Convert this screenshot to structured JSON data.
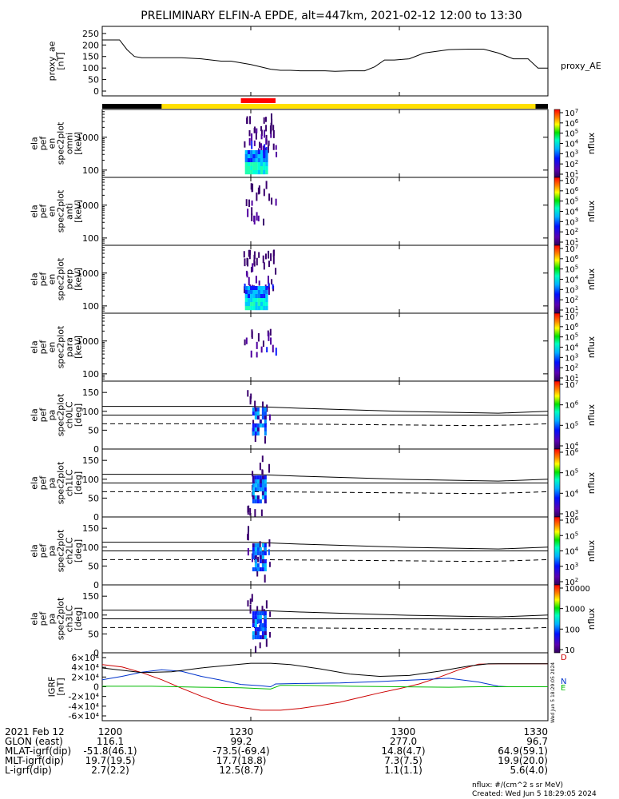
{
  "title": "PRELIMINARY ELFIN-A EPDE, alt=447km, 2021-02-12 12:00 to 13:30",
  "x_axis": {
    "tick_labels": [
      "1200",
      "1230",
      "1300",
      "1330"
    ],
    "tick_minutes": [
      0,
      30,
      60,
      90
    ],
    "range_minutes": [
      0,
      90
    ]
  },
  "chart_data": [
    {
      "type": "line",
      "panel": "proxy_ae",
      "ylabel": [
        "proxy_ae",
        "[nT]"
      ],
      "ylim": [
        0,
        260
      ],
      "yticks": [
        0,
        50,
        100,
        150,
        200,
        250
      ],
      "series": [
        {
          "name": "proxy_AE",
          "x": [
            0,
            3.5,
            5,
            6.5,
            8,
            13,
            16,
            20,
            24,
            26,
            30,
            34,
            36,
            38,
            40,
            42,
            45,
            47,
            50,
            53,
            55,
            57,
            59,
            62,
            65,
            70,
            74,
            77,
            80,
            83,
            86,
            88,
            90
          ],
          "y": [
            222,
            222,
            180,
            150,
            145,
            145,
            145,
            140,
            130,
            130,
            115,
            95,
            90,
            90,
            88,
            88,
            88,
            86,
            88,
            88,
            105,
            135,
            135,
            140,
            165,
            180,
            182,
            182,
            165,
            140,
            140,
            100,
            100
          ],
          "color": "#000000"
        }
      ]
    },
    {
      "type": "heatmap",
      "panel": "spec2plot-en-omni",
      "ylabel": [
        "ela",
        "pef",
        "en",
        "spec2plot",
        "omni",
        "[keV]"
      ],
      "yscale": "log",
      "yticks": [
        100,
        1000
      ],
      "colorbar": {
        "label": "nflux",
        "ticks": [
          "10^1",
          "10^2",
          "10^3",
          "10^4",
          "10^5",
          "10^6",
          "10^7"
        ]
      }
    },
    {
      "type": "heatmap",
      "panel": "spec2plot-en-anti",
      "ylabel": [
        "ela",
        "pef",
        "en",
        "spec2plot",
        "anti",
        "[keV]"
      ],
      "yscale": "log",
      "yticks": [
        100,
        1000
      ],
      "colorbar": {
        "label": "nflux",
        "ticks": [
          "10^1",
          "10^2",
          "10^3",
          "10^4",
          "10^5",
          "10^6",
          "10^7"
        ]
      }
    },
    {
      "type": "heatmap",
      "panel": "spec2plot-en-perp",
      "ylabel": [
        "ela",
        "pef",
        "en",
        "spec2plot",
        "perp",
        "[keV]"
      ],
      "yscale": "log",
      "yticks": [
        100,
        1000
      ],
      "colorbar": {
        "label": "nflux",
        "ticks": [
          "10^1",
          "10^2",
          "10^3",
          "10^4",
          "10^5",
          "10^6",
          "10^7"
        ]
      }
    },
    {
      "type": "heatmap",
      "panel": "spec2plot-en-para",
      "ylabel": [
        "ela",
        "pef",
        "en",
        "spec2plot",
        "para",
        "[keV]"
      ],
      "yscale": "log",
      "yticks": [
        100,
        1000
      ],
      "colorbar": {
        "label": "nflux",
        "ticks": [
          "10^1",
          "10^2",
          "10^3",
          "10^4",
          "10^5",
          "10^6",
          "10^7"
        ]
      }
    },
    {
      "type": "heatmap",
      "panel": "spec2plot-ch0LC",
      "ylabel": [
        "ela",
        "pef",
        "pa",
        "spec2plot",
        "ch0LC",
        "[deg]"
      ],
      "ylim": [
        0,
        180
      ],
      "yticks": [
        0,
        50,
        100,
        150
      ],
      "colorbar": {
        "label": "nflux",
        "ticks": [
          "10^4",
          "10^5",
          "10^6",
          "10^7"
        ]
      }
    },
    {
      "type": "heatmap",
      "panel": "spec2plot-ch1LC",
      "ylabel": [
        "ela",
        "pef",
        "pa",
        "spec2plot",
        "ch1LC",
        "[deg]"
      ],
      "ylim": [
        0,
        180
      ],
      "yticks": [
        0,
        50,
        100,
        150
      ],
      "colorbar": {
        "label": "nflux",
        "ticks": [
          "10^3",
          "10^4",
          "10^5",
          "10^6"
        ]
      }
    },
    {
      "type": "heatmap",
      "panel": "spec2plot-ch2LC",
      "ylabel": [
        "ela",
        "pef",
        "pa",
        "spec2plot",
        "ch2LC",
        "[deg]"
      ],
      "ylim": [
        0,
        180
      ],
      "yticks": [
        0,
        50,
        100,
        150
      ],
      "colorbar": {
        "label": "nflux",
        "ticks": [
          "10^2",
          "10^3",
          "10^4",
          "10^5",
          "10^6"
        ]
      }
    },
    {
      "type": "heatmap",
      "panel": "spec2plot-ch3LC",
      "ylabel": [
        "ela",
        "pef",
        "pa",
        "spec2plot",
        "ch3LC",
        "[deg]"
      ],
      "ylim": [
        0,
        180
      ],
      "yticks": [
        0,
        50,
        100,
        150
      ],
      "colorbar": {
        "label": "nflux",
        "ticks": [
          "10",
          "100",
          "1000",
          "10000"
        ]
      }
    },
    {
      "type": "line",
      "panel": "IGRF",
      "ylabel": [
        "IGRF",
        "[nT]"
      ],
      "ylim": [
        -62000,
        62000
      ],
      "yticks": [
        "-6×10⁴",
        "-4×10⁴",
        "-2×10⁴",
        "0",
        "2×10⁴",
        "4×10⁴",
        "6×10⁴"
      ],
      "series": [
        {
          "name": "D",
          "color": "#cc0000",
          "x": [
            0,
            4,
            8,
            12,
            16,
            20,
            24,
            28,
            32,
            36,
            40,
            44,
            48,
            52,
            56,
            60,
            64,
            68,
            72,
            76,
            80,
            84,
            88,
            90
          ],
          "y": [
            47000,
            42000,
            30000,
            15000,
            -3000,
            -20000,
            -35000,
            -44000,
            -50000,
            -50000,
            -46000,
            -40000,
            -33000,
            -23000,
            -13000,
            -4000,
            6000,
            20000,
            36000,
            48000,
            49000,
            49000,
            49000,
            49000
          ]
        },
        {
          "name": "N",
          "color": "#0033cc",
          "x": [
            0,
            4,
            8,
            12,
            16,
            20,
            24,
            28,
            32,
            34,
            35,
            40,
            48,
            56,
            64,
            70,
            76,
            80,
            82,
            84,
            86,
            88,
            90
          ],
          "y": [
            15000,
            22000,
            31000,
            36000,
            33000,
            22000,
            14000,
            5000,
            2000,
            0,
            6000,
            7000,
            8000,
            11000,
            15000,
            18000,
            10000,
            1000,
            0,
            0,
            0,
            0,
            0
          ]
        },
        {
          "name": "E",
          "color": "#00bb00",
          "x": [
            0,
            10,
            20,
            28,
            34,
            36,
            40,
            50,
            60,
            70,
            76,
            80,
            84,
            90
          ],
          "y": [
            1000,
            1000,
            -1000,
            -2000,
            -5000,
            3000,
            3000,
            1000,
            0,
            -1000,
            0,
            0,
            0,
            0
          ]
        },
        {
          "name": "",
          "color": "#000000",
          "x": [
            0,
            8,
            14,
            20,
            26,
            30,
            34,
            38,
            44,
            50,
            56,
            62,
            68,
            74,
            78,
            82,
            86,
            90
          ],
          "y": [
            40000,
            30000,
            32000,
            40000,
            46000,
            50000,
            50000,
            47000,
            38000,
            27000,
            22000,
            24000,
            33000,
            44000,
            49000,
            49000,
            49000,
            49000
          ]
        }
      ],
      "legend_labels": [
        "D",
        "N",
        "E"
      ]
    }
  ],
  "spectrum_box": {
    "start_min": 28.5,
    "end_min": 35.5
  },
  "status_bar": {
    "black_end_min": 12,
    "red_start_min": 28,
    "red_end_min": 35
  },
  "sidebar_stamp": "Wed Jun 5 18:29:05 2024",
  "footer": {
    "rows": [
      {
        "label": "2021 Feb 12",
        "values": [
          "1200",
          "1230",
          "1300",
          "1330"
        ]
      },
      {
        "label": "GLON (east)",
        "values": [
          "116.1",
          "99.2",
          "277.0",
          "96.7"
        ]
      },
      {
        "label": "MLAT-igrf(dip)",
        "values": [
          "-51.8(46.1)",
          "-73.5(-69.4)",
          "14.8(4.7)",
          "64.9(59.1)"
        ]
      },
      {
        "label": "MLT-igrf(dip)",
        "values": [
          "19.7(19.5)",
          "17.7(18.8)",
          "7.3(7.5)",
          "19.9(20.0)"
        ]
      },
      {
        "label": "L-igrf(dip)",
        "values": [
          "2.7(2.2)",
          "12.5(8.7)",
          "1.1(1.1)",
          "5.6(4.0)"
        ]
      }
    ],
    "units_note": "nflux: #/(cm^2 s sr MeV)",
    "created": "Created: Wed Jun  5 18:29:05 2024"
  }
}
